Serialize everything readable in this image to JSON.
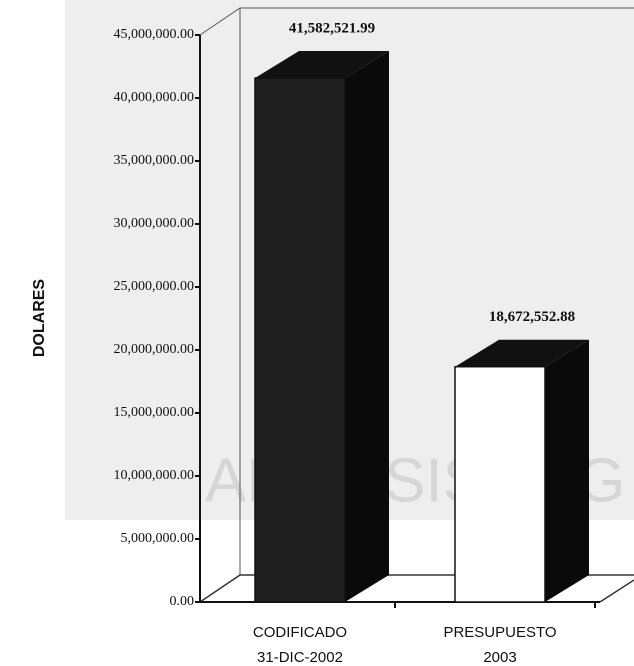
{
  "chart_data": {
    "type": "bar3d",
    "y_label": "DOLARES",
    "watermark": "ANALISIS LEG",
    "categories": [
      [
        "CODIFICADO",
        "31-DIC-2002"
      ],
      [
        "PRESUPUESTO",
        "2003"
      ]
    ],
    "values": [
      41582521.99,
      18672552.88
    ],
    "value_labels": [
      "41,582,521.99",
      "18,672,552.88"
    ],
    "colors": [
      "#1e1e1e",
      "#ffffff"
    ],
    "ylim": [
      0,
      45000000
    ],
    "yticks": [
      {
        "value": 0,
        "label": "0.00"
      },
      {
        "value": 5000000,
        "label": "5,000,000.00"
      },
      {
        "value": 10000000,
        "label": "10,000,000.00"
      },
      {
        "value": 15000000,
        "label": "15,000,000.00"
      },
      {
        "value": 20000000,
        "label": "20,000,000.00"
      },
      {
        "value": 25000000,
        "label": "25,000,000.00"
      },
      {
        "value": 30000000,
        "label": "30,000,000.00"
      },
      {
        "value": 35000000,
        "label": "35,000,000.00"
      },
      {
        "value": 40000000,
        "label": "40,000,000.00"
      },
      {
        "value": 45000000,
        "label": "45,000,000.00"
      }
    ],
    "grid": false
  }
}
